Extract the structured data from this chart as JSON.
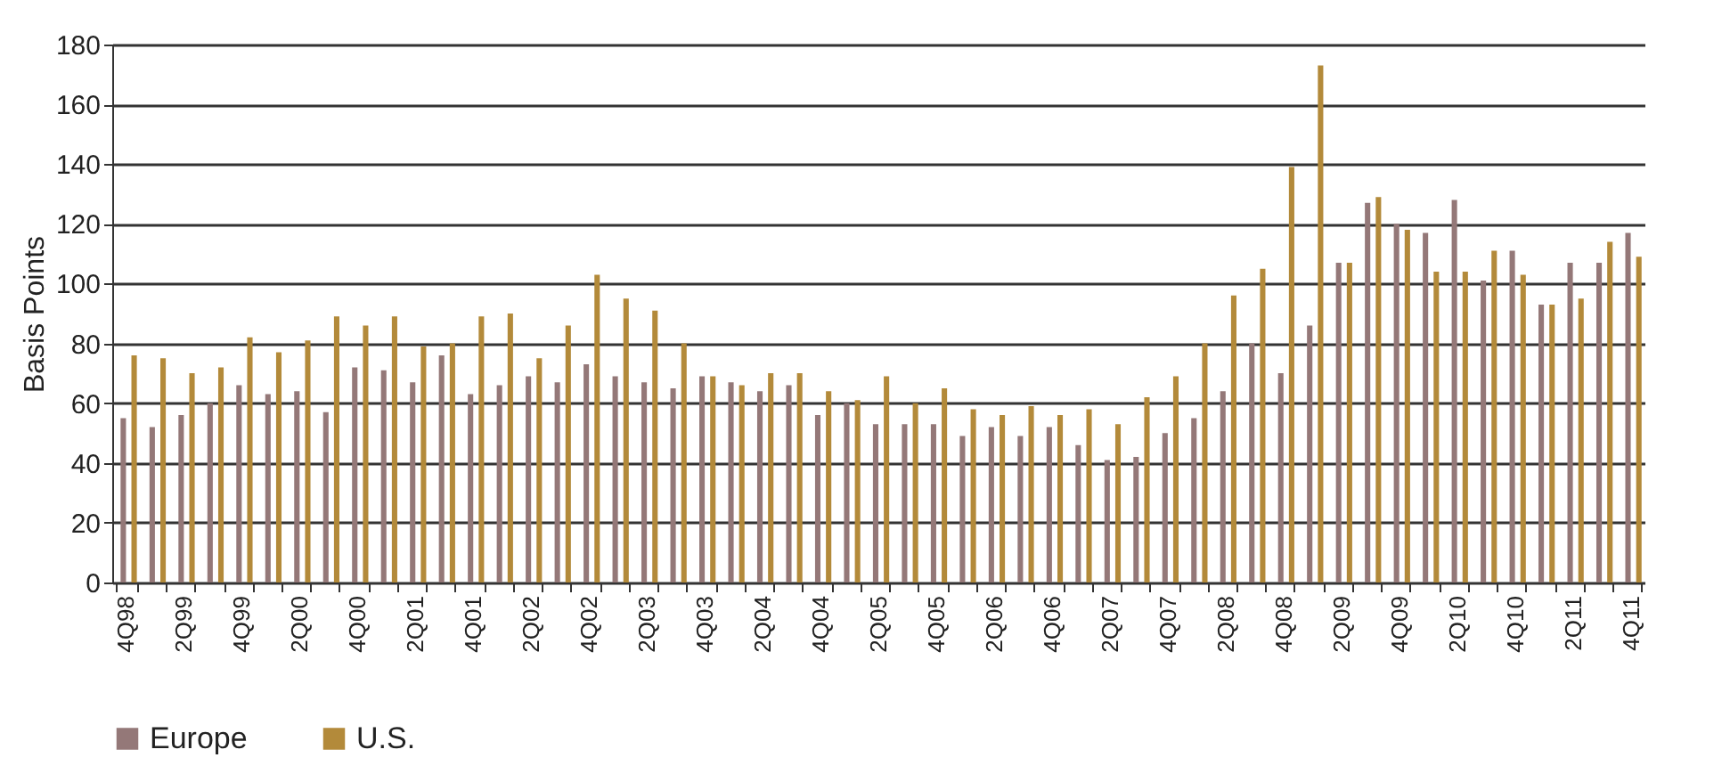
{
  "chart_data": {
    "type": "bar",
    "ylabel": "Basis Points",
    "categories": [
      "4Q98",
      null,
      "2Q99",
      null,
      "4Q99",
      null,
      "2Q00",
      null,
      "4Q00",
      null,
      "2Q01",
      null,
      "4Q01",
      null,
      "2Q02",
      null,
      "4Q02",
      null,
      "2Q03",
      null,
      "4Q03",
      null,
      "2Q04",
      null,
      "4Q04",
      null,
      "2Q05",
      null,
      "4Q05",
      null,
      "2Q06",
      null,
      "4Q06",
      null,
      "2Q07",
      null,
      "4Q07",
      null,
      "2Q08",
      null,
      "4Q08",
      null,
      "2Q09",
      null,
      "4Q09",
      null,
      "2Q10",
      null,
      "4Q10",
      null,
      "2Q11",
      null,
      "4Q11"
    ],
    "series": [
      {
        "name": "Europe",
        "color": "#947878",
        "values": [
          55,
          52,
          56,
          60,
          66,
          63,
          64,
          57,
          72,
          71,
          67,
          76,
          63,
          66,
          69,
          67,
          73,
          69,
          67,
          65,
          69,
          67,
          64,
          66,
          56,
          60,
          53,
          53,
          53,
          49,
          52,
          49,
          52,
          46,
          41,
          42,
          50,
          55,
          64,
          80,
          70,
          86,
          107,
          127,
          120,
          117,
          128,
          101,
          111,
          93,
          107,
          107,
          117
        ]
      },
      {
        "name": "U.S.",
        "color": "#b38a3a",
        "values": [
          76,
          75,
          70,
          72,
          82,
          77,
          81,
          89,
          86,
          89,
          79,
          80,
          89,
          90,
          75,
          86,
          103,
          95,
          91,
          80,
          69,
          66,
          70,
          70,
          64,
          61,
          69,
          60,
          65,
          58,
          56,
          59,
          56,
          58,
          53,
          62,
          69,
          80,
          96,
          105,
          139,
          173,
          107,
          129,
          118,
          104,
          104,
          111,
          103,
          93,
          95,
          114,
          109
        ]
      }
    ],
    "ylim": [
      0,
      180
    ],
    "yticks": [
      0,
      20,
      40,
      60,
      80,
      100,
      120,
      140,
      160,
      180
    ],
    "grid": "y",
    "legend": "bottom"
  }
}
